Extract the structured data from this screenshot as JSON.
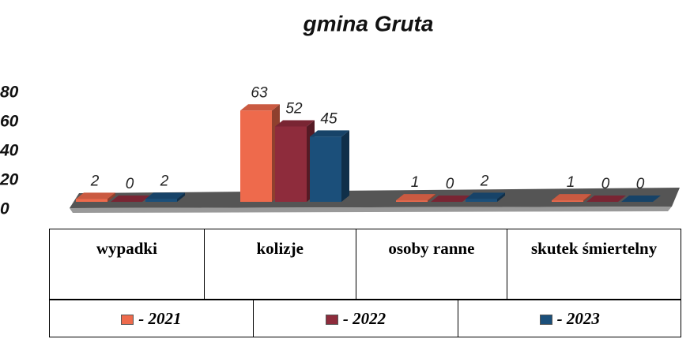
{
  "chart_data": {
    "type": "bar",
    "title": "gmina Gruta",
    "categories": [
      "wypadki",
      "kolizje",
      "osoby ranne",
      "skutek śmiertelny"
    ],
    "series": [
      {
        "name": "- 2021",
        "color": "#ee6a4c",
        "values": [
          2,
          63,
          1,
          1
        ]
      },
      {
        "name": "- 2022",
        "color": "#8e2c3c",
        "values": [
          0,
          52,
          0,
          0
        ]
      },
      {
        "name": "- 2023",
        "color": "#1b4f7a",
        "values": [
          2,
          45,
          2,
          0
        ]
      }
    ],
    "ylim": [
      0,
      80
    ],
    "yticks": [
      0,
      20,
      40,
      60,
      80
    ],
    "grid": false
  }
}
